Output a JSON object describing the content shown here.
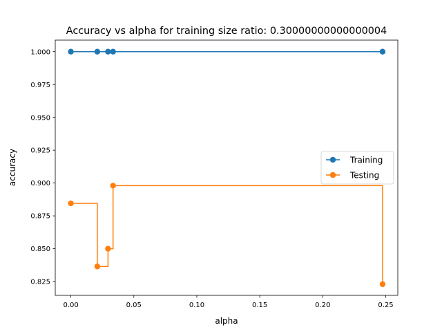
{
  "chart_data": {
    "type": "line",
    "title": "Accuracy vs alpha for training size ratio: 0.30000000000000004",
    "xlabel": "alpha",
    "ylabel": "accuracy",
    "xlim": [
      -0.0124,
      0.2596
    ],
    "ylim": [
      0.8145,
      1.0088
    ],
    "xticks": [
      0.0,
      0.05,
      0.1,
      0.15,
      0.2,
      0.25
    ],
    "xtick_labels": [
      "0.00",
      "0.05",
      "0.10",
      "0.15",
      "0.20",
      "0.25"
    ],
    "yticks": [
      0.825,
      0.85,
      0.875,
      0.9,
      0.925,
      0.95,
      0.975,
      1.0
    ],
    "ytick_labels": [
      "0.825",
      "0.850",
      "0.875",
      "0.900",
      "0.925",
      "0.950",
      "0.975",
      "1.000"
    ],
    "grid": false,
    "legend_position": "center-right",
    "drawstyle": "steps-post",
    "series": [
      {
        "name": "Training",
        "color": "#1f77b4",
        "marker": "circle",
        "x": [
          0.0,
          0.021,
          0.0295,
          0.0335,
          0.2475
        ],
        "y": [
          1.0,
          1.0,
          1.0,
          1.0,
          1.0
        ]
      },
      {
        "name": "Testing",
        "color": "#ff7f0e",
        "marker": "circle",
        "x": [
          0.0,
          0.021,
          0.0295,
          0.0335,
          0.2475
        ],
        "y": [
          0.8845,
          0.8365,
          0.85,
          0.898,
          0.823
        ]
      }
    ]
  }
}
